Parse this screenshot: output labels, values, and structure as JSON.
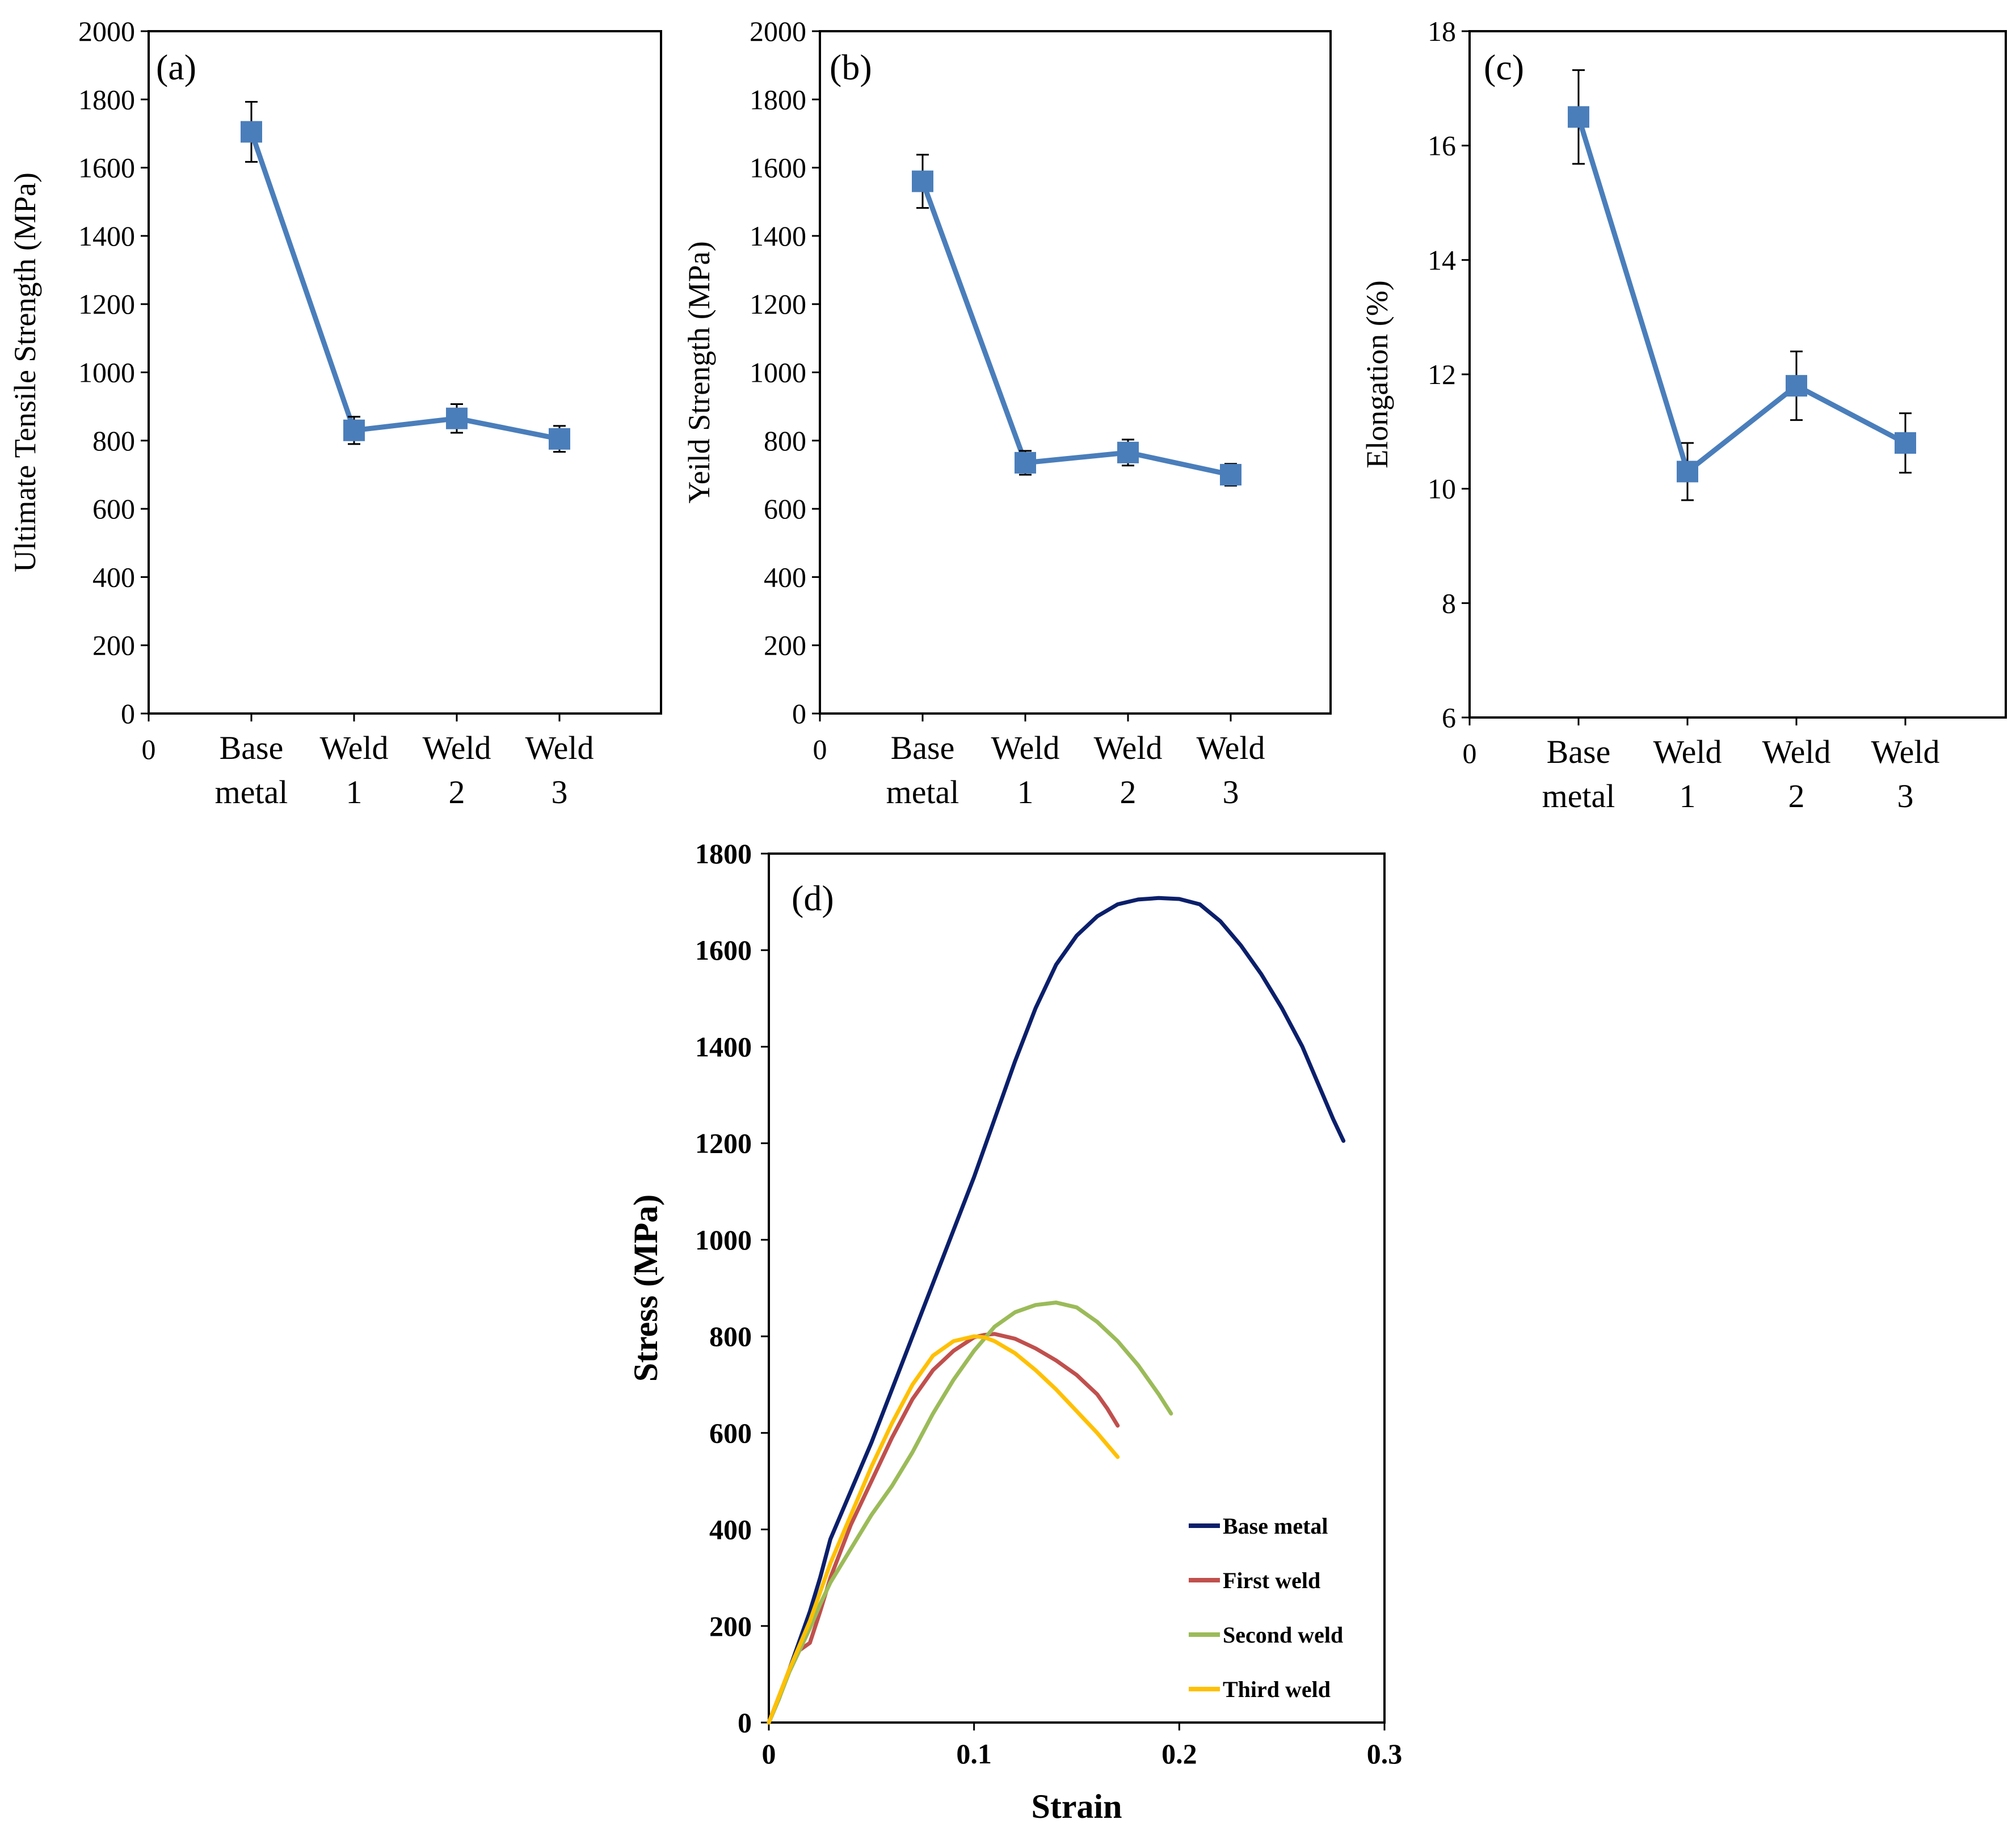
{
  "chart_data": [
    {
      "panel": "(a)",
      "type": "line",
      "ylabel": "Ultimate Tensile Strength (MPa)",
      "ylim": [
        0,
        2000
      ],
      "yticks": [
        0,
        200,
        400,
        600,
        800,
        1000,
        1200,
        1400,
        1600,
        1800,
        2000
      ],
      "x_zero_label": "0",
      "categories": [
        [
          "Base",
          "metal"
        ],
        [
          "Weld",
          "1"
        ],
        [
          "Weld",
          "2"
        ],
        [
          "Weld",
          "3"
        ]
      ],
      "values": [
        1705,
        830,
        865,
        805
      ],
      "errors": [
        88,
        40,
        42,
        38
      ],
      "color": "#4a7ebb"
    },
    {
      "panel": "(b)",
      "type": "line",
      "ylabel": "Yeild Strength (MPa)",
      "ylim": [
        0,
        2000
      ],
      "yticks": [
        0,
        200,
        400,
        600,
        800,
        1000,
        1200,
        1400,
        1600,
        1800,
        2000
      ],
      "x_zero_label": "0",
      "categories": [
        [
          "Base",
          "metal"
        ],
        [
          "Weld",
          "1"
        ],
        [
          "Weld",
          "2"
        ],
        [
          "Weld",
          "3"
        ]
      ],
      "values": [
        1560,
        735,
        765,
        700
      ],
      "errors": [
        78,
        35,
        38,
        32
      ],
      "color": "#4a7ebb"
    },
    {
      "panel": "(c)",
      "type": "line",
      "ylabel": "Elongation (%)",
      "ylim": [
        6,
        18
      ],
      "yticks": [
        6,
        8,
        10,
        12,
        14,
        16,
        18
      ],
      "x_zero_label": "0",
      "categories": [
        [
          "Base",
          "metal"
        ],
        [
          "Weld",
          "1"
        ],
        [
          "Weld",
          "2"
        ],
        [
          "Weld",
          "3"
        ]
      ],
      "values": [
        16.5,
        10.3,
        11.8,
        10.8
      ],
      "errors": [
        0.82,
        0.5,
        0.6,
        0.52
      ],
      "color": "#4a7ebb"
    },
    {
      "panel": "(d)",
      "type": "line",
      "xlabel": "Strain",
      "ylabel": "Stress (MPa)",
      "xlim": [
        0,
        0.3
      ],
      "ylim": [
        0,
        1800
      ],
      "xticks": [
        0,
        0.1,
        0.2,
        0.3
      ],
      "yticks": [
        0,
        200,
        400,
        600,
        800,
        1000,
        1200,
        1400,
        1600,
        1800
      ],
      "legend_position": "bottom-right",
      "series": [
        {
          "name": "Base metal",
          "color": "#0b1f6b",
          "x": [
            0,
            0.005,
            0.01,
            0.015,
            0.02,
            0.025,
            0.03,
            0.04,
            0.05,
            0.06,
            0.07,
            0.08,
            0.09,
            0.1,
            0.11,
            0.12,
            0.13,
            0.14,
            0.15,
            0.16,
            0.17,
            0.18,
            0.19,
            0.2,
            0.21,
            0.22,
            0.23,
            0.24,
            0.25,
            0.26,
            0.27,
            0.275,
            0.28
          ],
          "y": [
            0,
            50,
            110,
            170,
            230,
            300,
            380,
            480,
            580,
            690,
            800,
            910,
            1020,
            1130,
            1250,
            1370,
            1480,
            1570,
            1630,
            1670,
            1695,
            1705,
            1708,
            1706,
            1695,
            1660,
            1610,
            1550,
            1480,
            1400,
            1300,
            1250,
            1205
          ]
        },
        {
          "name": "First weld",
          "color": "#c0504d",
          "x": [
            0,
            0.005,
            0.01,
            0.015,
            0.02,
            0.025,
            0.03,
            0.04,
            0.05,
            0.06,
            0.07,
            0.08,
            0.09,
            0.1,
            0.105,
            0.11,
            0.12,
            0.13,
            0.14,
            0.15,
            0.16,
            0.165,
            0.17
          ],
          "y": [
            0,
            55,
            110,
            150,
            165,
            230,
            300,
            410,
            500,
            590,
            670,
            730,
            770,
            798,
            803,
            805,
            795,
            775,
            750,
            720,
            680,
            650,
            615
          ]
        },
        {
          "name": "Second weld",
          "color": "#9bbb59",
          "x": [
            0,
            0.005,
            0.01,
            0.015,
            0.02,
            0.025,
            0.03,
            0.04,
            0.05,
            0.06,
            0.07,
            0.08,
            0.09,
            0.1,
            0.11,
            0.12,
            0.13,
            0.14,
            0.15,
            0.16,
            0.17,
            0.18,
            0.19,
            0.196
          ],
          "y": [
            0,
            50,
            105,
            150,
            195,
            245,
            290,
            360,
            430,
            490,
            560,
            640,
            710,
            770,
            820,
            850,
            865,
            870,
            860,
            830,
            790,
            740,
            680,
            640
          ]
        },
        {
          "name": "Third weld",
          "color": "#ffc000",
          "x": [
            0,
            0.005,
            0.01,
            0.015,
            0.02,
            0.025,
            0.03,
            0.04,
            0.05,
            0.06,
            0.07,
            0.08,
            0.09,
            0.1,
            0.105,
            0.11,
            0.12,
            0.13,
            0.14,
            0.15,
            0.16,
            0.17
          ],
          "y": [
            0,
            55,
            110,
            160,
            210,
            270,
            330,
            430,
            530,
            620,
            700,
            760,
            790,
            800,
            798,
            790,
            765,
            730,
            690,
            645,
            600,
            550
          ]
        }
      ]
    }
  ]
}
